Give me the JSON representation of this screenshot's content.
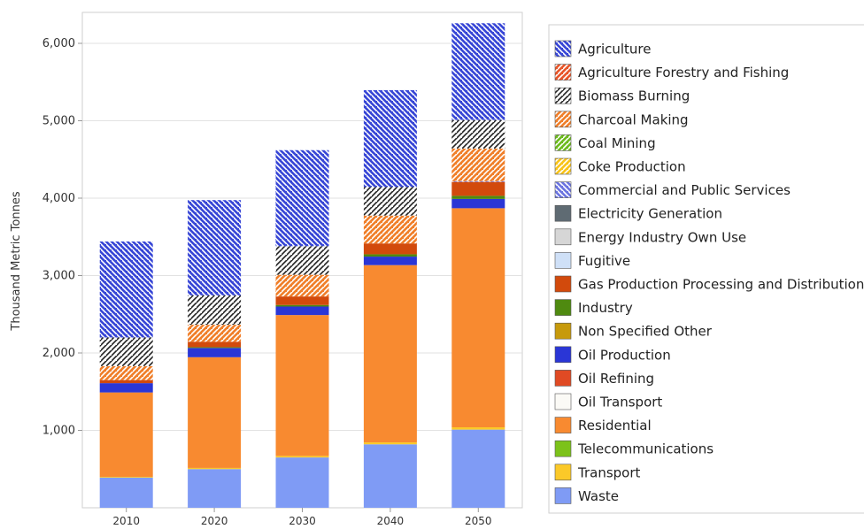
{
  "chart_data": {
    "type": "bar",
    "stacked": true,
    "title": "",
    "xlabel": "",
    "ylabel": "Thousand Metric Tonnes",
    "ylim": [
      0,
      6400
    ],
    "yticks": [
      1000,
      2000,
      3000,
      4000,
      5000,
      6000
    ],
    "ytick_labels": [
      "1,000",
      "2,000",
      "3,000",
      "4,000",
      "5,000",
      "6,000"
    ],
    "grid": true,
    "legend_position": "right",
    "categories": [
      "2010",
      "2020",
      "2030",
      "2040",
      "2050"
    ],
    "series": [
      {
        "name": "Agriculture",
        "color": "#3847d6",
        "pattern": "hatch-back",
        "values": [
          1240,
          1230,
          1240,
          1250,
          1250
        ]
      },
      {
        "name": "Agriculture Forestry and Fishing",
        "color": "#e8562a",
        "pattern": "hatch",
        "values": [
          0,
          0,
          0,
          0,
          0
        ]
      },
      {
        "name": "Biomass Burning",
        "color": "#ffffff",
        "pattern": "hatch",
        "values": [
          370,
          380,
          370,
          370,
          370
        ]
      },
      {
        "name": "Charcoal Making",
        "color": "#f07f2a",
        "pattern": "hatch",
        "values": [
          180,
          220,
          280,
          360,
          420
        ]
      },
      {
        "name": "Coal Mining",
        "color": "#6dbb1e",
        "pattern": "hatch",
        "values": [
          0,
          0,
          0,
          0,
          0
        ]
      },
      {
        "name": "Coke Production",
        "color": "#f8c41a",
        "pattern": "hatch",
        "values": [
          0,
          0,
          0,
          0,
          0
        ]
      },
      {
        "name": "Commercial and Public Services",
        "color": "#6b74e0",
        "pattern": "hatch-back",
        "values": [
          0,
          0,
          0,
          0,
          10
        ]
      },
      {
        "name": "Electricity Generation",
        "color": "#5f6b73",
        "pattern": "solid",
        "values": [
          0,
          0,
          0,
          0,
          0
        ]
      },
      {
        "name": "Energy Industry Own Use",
        "color": "#d6d6d6",
        "pattern": "solid",
        "values": [
          0,
          0,
          0,
          0,
          0
        ]
      },
      {
        "name": "Fugitive",
        "color": "#cfe0f7",
        "pattern": "solid",
        "values": [
          0,
          0,
          0,
          0,
          0
        ]
      },
      {
        "name": "Gas Production Processing and Distribution",
        "color": "#d24a0c",
        "pattern": "solid",
        "values": [
          40,
          70,
          110,
          140,
          180
        ]
      },
      {
        "name": "Industry",
        "color": "#4f8a10",
        "pattern": "solid",
        "values": [
          0,
          10,
          20,
          30,
          40
        ]
      },
      {
        "name": "Non Specified Other",
        "color": "#c79a0c",
        "pattern": "solid",
        "values": [
          0,
          0,
          0,
          0,
          0
        ]
      },
      {
        "name": "Oil Production",
        "color": "#2a36d6",
        "pattern": "solid",
        "values": [
          120,
          120,
          110,
          110,
          120
        ]
      },
      {
        "name": "Oil Refining",
        "color": "#e04a24",
        "pattern": "solid",
        "values": [
          0,
          0,
          0,
          0,
          0
        ]
      },
      {
        "name": "Oil Transport",
        "color": "#fbfaf6",
        "pattern": "solid",
        "values": [
          0,
          0,
          0,
          0,
          0
        ]
      },
      {
        "name": "Residential",
        "color": "#f88a30",
        "pattern": "solid",
        "values": [
          1090,
          1430,
          1820,
          2290,
          2830
        ]
      },
      {
        "name": "Telecommunications",
        "color": "#7cc21a",
        "pattern": "solid",
        "values": [
          0,
          0,
          0,
          0,
          0
        ]
      },
      {
        "name": "Transport",
        "color": "#fbc929",
        "pattern": "solid",
        "values": [
          10,
          15,
          20,
          25,
          30
        ]
      },
      {
        "name": "Waste",
        "color": "#7f9bf5",
        "pattern": "solid",
        "values": [
          390,
          500,
          650,
          820,
          1010
        ]
      }
    ]
  }
}
